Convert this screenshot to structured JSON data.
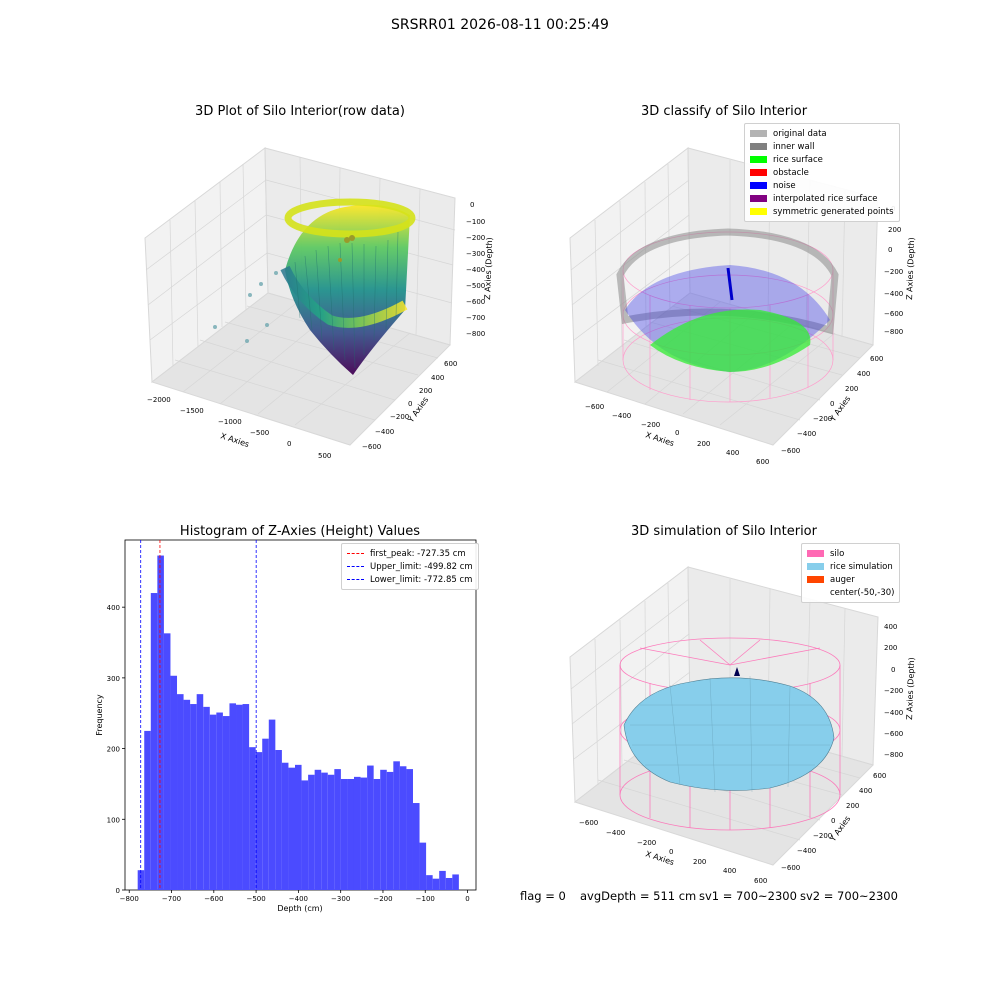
{
  "suptitle": "SRSRR01 2026-08-11 00:25:49",
  "panel1": {
    "title": "3D Plot of Silo Interior(row data)",
    "xlabel": "X Axies",
    "ylabel": "Y Axies",
    "zlabel": "Z Axies (Depth)",
    "xticks": [
      "−2000",
      "−1500",
      "−1000",
      "−500",
      "0",
      "500"
    ],
    "yticks": [
      "600",
      "400",
      "200",
      "0",
      "−200",
      "−400",
      "−600"
    ],
    "zticks": [
      "0",
      "−100",
      "−200",
      "−300",
      "−400",
      "−500",
      "−600",
      "−700",
      "−800"
    ]
  },
  "panel2": {
    "title": "3D classify of Silo Interior",
    "xlabel": "X Axies",
    "ylabel": "Y Axies",
    "zlabel": "Z Axies (Depth)",
    "xticks": [
      "−600",
      "−400",
      "−200",
      "0",
      "200",
      "400",
      "600"
    ],
    "yticks": [
      "600",
      "400",
      "200",
      "0",
      "−200",
      "−400",
      "−600"
    ],
    "zticks": [
      "200",
      "0",
      "−200",
      "−400",
      "−600",
      "−800"
    ],
    "zticks_extra": "0",
    "legend": [
      {
        "label": "original data",
        "color": "#b3b3b3"
      },
      {
        "label": "inner wall",
        "color": "#808080"
      },
      {
        "label": "rice surface",
        "color": "#00ff00"
      },
      {
        "label": "obstacle",
        "color": "#ff0000"
      },
      {
        "label": "noise",
        "color": "#0000ff"
      },
      {
        "label": "interpolated rice surface",
        "color": "#800080"
      },
      {
        "label": "symmetric generated points",
        "color": "#ffff00"
      }
    ]
  },
  "panel3": {
    "title": "Histogram of Z-Axies (Height) Values",
    "xlabel": "Depth (cm)",
    "ylabel": "Frequency",
    "legend": [
      {
        "label": "first_peak: -727.35 cm",
        "color": "#ff0000"
      },
      {
        "label": "Upper_limit: -499.82 cm",
        "color": "#0000ff"
      },
      {
        "label": "Lower_limit: -772.85 cm",
        "color": "#0000ff"
      }
    ]
  },
  "panel4": {
    "title": "3D simulation of Silo Interior",
    "xlabel": "X Axies",
    "ylabel": "Y Axies",
    "zlabel": "Z Axies (Depth)",
    "xticks": [
      "−600",
      "−400",
      "−200",
      "0",
      "200",
      "400",
      "600"
    ],
    "yticks": [
      "600",
      "400",
      "200",
      "0",
      "−200",
      "−400",
      "−600"
    ],
    "zticks": [
      "400",
      "200",
      "0",
      "−200",
      "−400",
      "−600",
      "−800"
    ],
    "legend": [
      {
        "label": "silo",
        "color": "#ff69b4"
      },
      {
        "label": "rice simulation",
        "color": "#87ceeb"
      },
      {
        "label": "auger",
        "color": "#ff4500"
      },
      {
        "label": "center(-50,-30)",
        "color": ""
      }
    ]
  },
  "footer": {
    "flag": "flag = 0",
    "avg": "avgDepth = 511 cm",
    "sv1": "sv1 = 700~2300",
    "sv2": "sv2 = 700~2300"
  },
  "chart_data": [
    {
      "type": "scatter",
      "title": "3D Plot of Silo Interior(row data)",
      "xlabel": "X Axies",
      "ylabel": "Y Axies",
      "zlabel": "Z Axies (Depth)",
      "xlim": [
        -2100,
        600
      ],
      "ylim": [
        -650,
        650
      ],
      "zlim": [
        -850,
        0
      ],
      "colormap": "viridis"
    },
    {
      "type": "scatter",
      "title": "3D classify of Silo Interior",
      "xlabel": "X Axies",
      "ylabel": "Y Axies",
      "zlabel": "Z Axies (Depth)",
      "xlim": [
        -650,
        650
      ],
      "ylim": [
        -650,
        650
      ],
      "zlim": [
        -850,
        250
      ],
      "series": [
        "original data",
        "inner wall",
        "rice surface",
        "obstacle",
        "noise",
        "interpolated rice surface",
        "symmetric generated points"
      ]
    },
    {
      "type": "bar",
      "title": "Histogram of Z-Axies (Height) Values",
      "xlabel": "Depth (cm)",
      "ylabel": "Frequency",
      "xlim": [
        -810,
        20
      ],
      "ylim": [
        0,
        495
      ],
      "xticks": [
        -800,
        -700,
        -600,
        -500,
        -400,
        -300,
        -200,
        -100,
        0
      ],
      "yticks": [
        0,
        100,
        200,
        300,
        400
      ],
      "bin_start": -780,
      "bin_width": 15.5,
      "values": [
        28,
        225,
        420,
        473,
        363,
        303,
        277,
        269,
        263,
        277,
        259,
        248,
        251,
        246,
        264,
        262,
        263,
        202,
        195,
        214,
        241,
        198,
        180,
        173,
        177,
        155,
        163,
        170,
        166,
        163,
        171,
        157,
        157,
        160,
        159,
        176,
        157,
        170,
        167,
        182,
        175,
        171,
        123,
        67,
        21,
        16,
        27,
        17,
        22
      ],
      "vlines": [
        {
          "label": "first_peak: -727.35 cm",
          "x": -727.35,
          "color": "#ff0000"
        },
        {
          "label": "Upper_limit: -499.82 cm",
          "x": -499.82,
          "color": "#0000ff"
        },
        {
          "label": "Lower_limit: -772.85 cm",
          "x": -772.85,
          "color": "#0000ff"
        }
      ]
    },
    {
      "type": "area",
      "title": "3D simulation of Silo Interior",
      "xlabel": "X Axies",
      "ylabel": "Y Axies",
      "zlabel": "Z Axies (Depth)",
      "xlim": [
        -650,
        650
      ],
      "ylim": [
        -650,
        650
      ],
      "zlim": [
        -850,
        450
      ],
      "series": [
        "silo",
        "rice simulation",
        "auger",
        "center(-50,-30)"
      ]
    }
  ]
}
